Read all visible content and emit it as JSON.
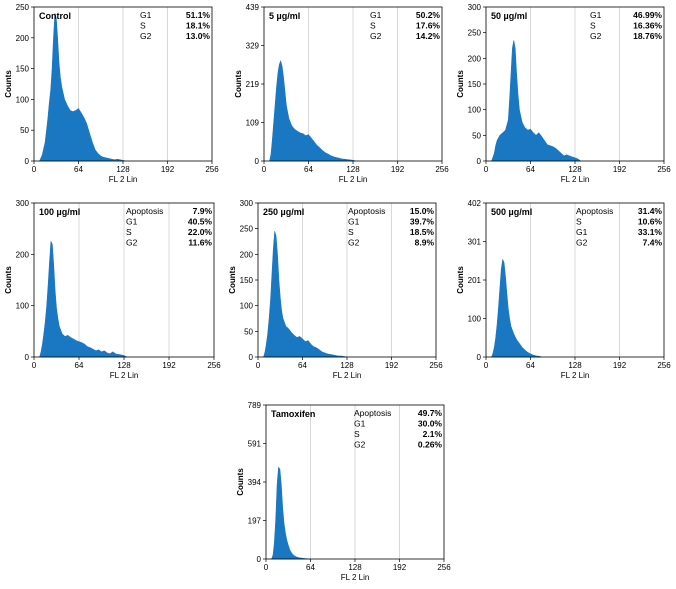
{
  "colors": {
    "fill": "#1a78c2",
    "frame": "#000000",
    "grid": "#bfbfbf",
    "background": "#ffffff"
  },
  "chart_data": [
    {
      "type": "area",
      "title": "Control",
      "xlabel": "FL 2 Lin",
      "ylabel": "Counts",
      "xlim": [
        0,
        256
      ],
      "xticks": [
        "0",
        "64",
        "128",
        "192",
        "256"
      ],
      "ylim": [
        0,
        250
      ],
      "yticks": [
        "0",
        "50",
        "100",
        "150",
        "200",
        "250"
      ],
      "legend": [
        {
          "label": "G1",
          "value": "51.1%"
        },
        {
          "label": "S",
          "value": "18.1%"
        },
        {
          "label": "G2",
          "value": "13.0%"
        }
      ],
      "x": [
        8,
        12,
        16,
        20,
        22,
        24,
        26,
        28,
        30,
        32,
        34,
        36,
        38,
        40,
        44,
        48,
        52,
        56,
        60,
        64,
        68,
        72,
        76,
        80,
        84,
        88,
        92,
        96,
        100,
        104,
        108,
        112,
        116,
        120,
        124,
        128,
        132
      ],
      "y": [
        0,
        10,
        30,
        70,
        95,
        115,
        150,
        200,
        240,
        232,
        200,
        160,
        135,
        120,
        100,
        90,
        82,
        80,
        82,
        85,
        78,
        70,
        60,
        45,
        30,
        18,
        12,
        8,
        6,
        5,
        4,
        3,
        2,
        3,
        2,
        1,
        0
      ]
    },
    {
      "type": "area",
      "title": "5 µg/ml",
      "xlabel": "FL 2 Lin",
      "ylabel": "Counts",
      "xlim": [
        0,
        256
      ],
      "xticks": [
        "0",
        "64",
        "128",
        "192",
        "256"
      ],
      "ylim": [
        0,
        439
      ],
      "yticks": [
        "0",
        "109",
        "219",
        "329",
        "439"
      ],
      "legend": [
        {
          "label": "G1",
          "value": "50.2%"
        },
        {
          "label": "S",
          "value": "17.6%"
        },
        {
          "label": "G2",
          "value": "14.2%"
        }
      ],
      "x": [
        8,
        10,
        12,
        14,
        16,
        18,
        20,
        22,
        24,
        26,
        28,
        30,
        32,
        34,
        36,
        40,
        44,
        48,
        52,
        56,
        60,
        64,
        68,
        72,
        76,
        80,
        84,
        88,
        92,
        96,
        100,
        104,
        108,
        112,
        116,
        120,
        124,
        128,
        132
      ],
      "y": [
        0,
        20,
        60,
        110,
        160,
        210,
        250,
        275,
        285,
        270,
        240,
        200,
        160,
        140,
        120,
        100,
        90,
        85,
        80,
        78,
        72,
        75,
        65,
        55,
        45,
        38,
        30,
        24,
        20,
        15,
        12,
        10,
        8,
        6,
        5,
        4,
        3,
        2,
        0
      ]
    },
    {
      "type": "area",
      "title": "50 µg/ml",
      "xlabel": "FL 2 Lin",
      "ylabel": "Counts",
      "xlim": [
        0,
        256
      ],
      "xticks": [
        "0",
        "64",
        "128",
        "192",
        "256"
      ],
      "ylim": [
        0,
        300
      ],
      "yticks": [
        "0",
        "50",
        "100",
        "150",
        "200",
        "250",
        "300"
      ],
      "legend": [
        {
          "label": "G1",
          "value": "46.99%"
        },
        {
          "label": "S",
          "value": "16.36%"
        },
        {
          "label": "G2",
          "value": "18.76%"
        }
      ],
      "x": [
        8,
        12,
        14,
        16,
        18,
        20,
        24,
        28,
        32,
        34,
        36,
        38,
        40,
        42,
        44,
        46,
        48,
        52,
        56,
        60,
        64,
        68,
        72,
        76,
        80,
        84,
        88,
        92,
        96,
        100,
        104,
        108,
        112,
        116,
        120,
        124,
        128,
        132,
        136
      ],
      "y": [
        0,
        15,
        30,
        40,
        45,
        50,
        55,
        60,
        80,
        120,
        170,
        220,
        235,
        220,
        170,
        130,
        100,
        75,
        65,
        60,
        62,
        55,
        50,
        55,
        48,
        40,
        32,
        30,
        28,
        25,
        20,
        15,
        10,
        12,
        10,
        8,
        6,
        4,
        0
      ]
    },
    {
      "type": "area",
      "title": "100 µg/ml",
      "xlabel": "FL 2 Lin",
      "ylabel": "Counts",
      "xlim": [
        0,
        256
      ],
      "xticks": [
        "0",
        "64",
        "128",
        "192",
        "256"
      ],
      "ylim": [
        0,
        300
      ],
      "yticks": [
        "0",
        "100",
        "200",
        "300"
      ],
      "legend": [
        {
          "label": "Apoptosis",
          "value": "7.9%"
        },
        {
          "label": "G1",
          "value": "40.5%"
        },
        {
          "label": "S",
          "value": "22.0%"
        },
        {
          "label": "G2",
          "value": "11.6%"
        }
      ],
      "x": [
        8,
        10,
        12,
        14,
        16,
        18,
        20,
        22,
        24,
        26,
        28,
        30,
        32,
        34,
        36,
        40,
        44,
        48,
        52,
        56,
        60,
        64,
        68,
        72,
        76,
        80,
        84,
        88,
        92,
        96,
        100,
        104,
        108,
        112,
        116,
        120,
        124,
        128,
        132
      ],
      "y": [
        0,
        10,
        25,
        45,
        70,
        100,
        140,
        185,
        225,
        220,
        180,
        130,
        95,
        75,
        60,
        45,
        40,
        42,
        38,
        35,
        32,
        30,
        28,
        25,
        20,
        18,
        15,
        12,
        14,
        10,
        12,
        8,
        6,
        10,
        6,
        5,
        4,
        3,
        0
      ]
    },
    {
      "type": "area",
      "title": "250 µg/ml",
      "xlabel": "FL 2 Lin",
      "ylabel": "Counts",
      "xlim": [
        0,
        256
      ],
      "xticks": [
        "0",
        "64",
        "128",
        "192",
        "256"
      ],
      "ylim": [
        0,
        300
      ],
      "yticks": [
        "0",
        "50",
        "100",
        "150",
        "200",
        "250",
        "300"
      ],
      "legend": [
        {
          "label": "Apoptosis",
          "value": "15.0%"
        },
        {
          "label": "G1",
          "value": "39.7%"
        },
        {
          "label": "S",
          "value": "18.5%"
        },
        {
          "label": "G2",
          "value": "8.9%"
        }
      ],
      "x": [
        8,
        10,
        12,
        14,
        16,
        18,
        20,
        22,
        24,
        26,
        28,
        30,
        32,
        34,
        36,
        40,
        44,
        48,
        52,
        56,
        60,
        64,
        68,
        72,
        76,
        80,
        84,
        88,
        92,
        96,
        100,
        104,
        108,
        112,
        116,
        120,
        124,
        128
      ],
      "y": [
        0,
        10,
        25,
        45,
        75,
        110,
        160,
        210,
        245,
        235,
        200,
        150,
        115,
        90,
        75,
        60,
        55,
        48,
        42,
        38,
        40,
        35,
        30,
        32,
        25,
        20,
        18,
        14,
        10,
        8,
        6,
        5,
        4,
        3,
        2,
        2,
        1,
        0
      ]
    },
    {
      "type": "area",
      "title": "500 µg/ml",
      "xlabel": "FL 2 Lin",
      "ylabel": "Counts",
      "xlim": [
        0,
        256
      ],
      "xticks": [
        "0",
        "64",
        "128",
        "192",
        "256"
      ],
      "ylim": [
        0,
        402
      ],
      "yticks": [
        "0",
        "100",
        "201",
        "301",
        "402"
      ],
      "legend": [
        {
          "label": "Apoptosis",
          "value": "31.4%"
        },
        {
          "label": "S",
          "value": "10.6%"
        },
        {
          "label": "G1",
          "value": "33.1%"
        },
        {
          "label": "G2",
          "value": "7.4%"
        }
      ],
      "x": [
        8,
        10,
        12,
        14,
        16,
        18,
        20,
        22,
        24,
        26,
        28,
        30,
        32,
        34,
        36,
        40,
        44,
        48,
        52,
        56,
        60,
        64,
        68,
        72,
        76,
        80
      ],
      "y": [
        0,
        10,
        25,
        50,
        85,
        130,
        180,
        230,
        255,
        245,
        210,
        165,
        125,
        100,
        80,
        60,
        45,
        35,
        25,
        18,
        12,
        8,
        5,
        3,
        2,
        0
      ]
    },
    {
      "type": "area",
      "title": "Tamoxifen",
      "xlabel": "FL 2 Lin",
      "ylabel": "Counts",
      "xlim": [
        0,
        256
      ],
      "xticks": [
        "0",
        "64",
        "128",
        "192",
        "256"
      ],
      "ylim": [
        0,
        789
      ],
      "yticks": [
        "0",
        "197",
        "394",
        "591",
        "789"
      ],
      "legend": [
        {
          "label": "Apoptosis",
          "value": "49.7%"
        },
        {
          "label": "G1",
          "value": "30.0%"
        },
        {
          "label": "S",
          "value": "2.1%"
        },
        {
          "label": "G2",
          "value": "0.26%"
        }
      ],
      "x": [
        8,
        10,
        12,
        14,
        16,
        18,
        20,
        22,
        24,
        26,
        28,
        30,
        32,
        34,
        36,
        38,
        40,
        44,
        48,
        52,
        56,
        60,
        64
      ],
      "y": [
        0,
        20,
        80,
        200,
        380,
        470,
        460,
        380,
        260,
        180,
        130,
        95,
        70,
        50,
        35,
        25,
        18,
        10,
        6,
        4,
        2,
        1,
        0
      ]
    }
  ]
}
